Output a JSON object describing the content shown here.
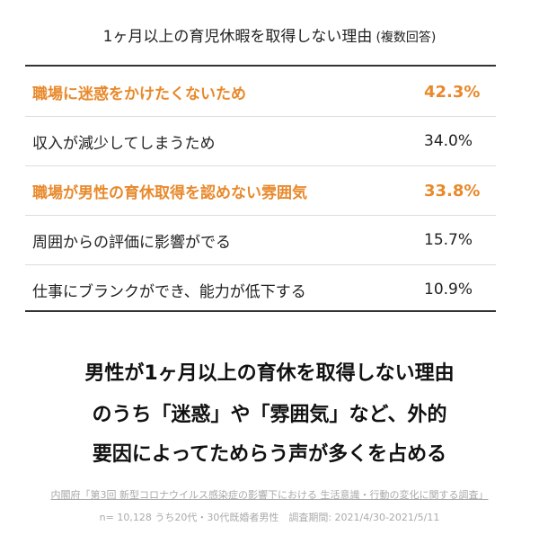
{
  "title": {
    "main": "1ヶ月以上の育児休暇を取得しない理由",
    "suffix": "(複数回答)"
  },
  "highlight_color": "#e8892b",
  "table": {
    "rows": [
      {
        "label": "職場に迷惑をかけたくないため",
        "value": "42.3%",
        "highlight": true
      },
      {
        "label": "収入が減少してしまうため",
        "value": "34.0%",
        "highlight": false
      },
      {
        "label": "職場が男性の育休取得を認めない雰囲気",
        "value": "33.8%",
        "highlight": true
      },
      {
        "label": "周囲からの評価に影響がでる",
        "value": "15.7%",
        "highlight": false
      },
      {
        "label": "仕事にブランクができ、能力が低下する",
        "value": "10.9%",
        "highlight": false
      }
    ]
  },
  "message": [
    "男性が1ヶ月以上の育休を取得しない理由",
    "のうち「迷惑」や「雰囲気」など、外的",
    "要因によってためらう声が多くを占める"
  ],
  "source": "内閣府「第3回 新型コロナウイルス感染症の影響下における 生活意識・行動の変化に関する調査」",
  "note": "n= 10,128 うち20代・30代既婚者男性　調査期間: 2021/4/30-2021/5/11"
}
